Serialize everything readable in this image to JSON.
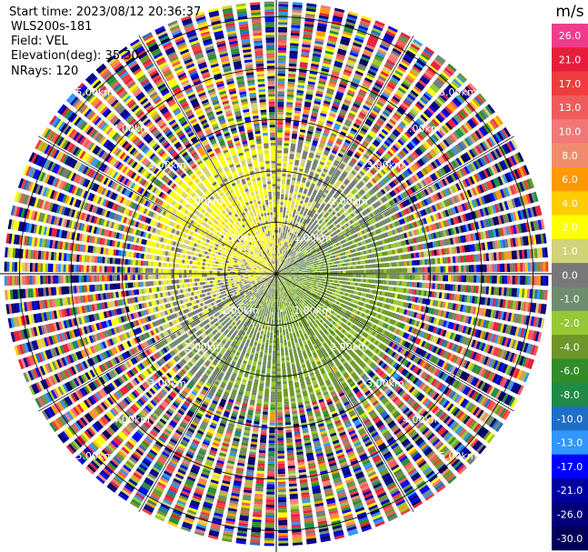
{
  "info": {
    "start_time": "Start time: 2023/08/12 20:36:37",
    "station": "WLS200s-181",
    "field": "Field: VEL",
    "elevation": "Elevation(deg): 35.30",
    "nrays": "NRays: 120"
  },
  "colorbar": {
    "unit": "m/s",
    "ticks": [
      "26.0",
      "21.0",
      "17.0",
      "13.0",
      "10.0",
      "8.0",
      "6.0",
      "4.0",
      "2.0",
      "1.0",
      "0.0",
      "-1.0",
      "-2.0",
      "-4.0",
      "-6.0",
      "-8.0",
      "-10.0",
      "-13.0",
      "-17.0",
      "-21.0",
      "-26.0",
      "-30.0"
    ],
    "colors": [
      "#f03c8c",
      "#e61e3c",
      "#f03c3c",
      "#f05a5a",
      "#f07878",
      "#f08c6e",
      "#ff9900",
      "#ffcc00",
      "#ffff00",
      "#d2d278",
      "#787878",
      "#6e8c6e",
      "#96c832",
      "#6e9628",
      "#328c28",
      "#1e8c46",
      "#1e6ec8",
      "#3296ff",
      "#0000ff",
      "#0000a0",
      "#000078",
      "#00005a"
    ]
  },
  "chart_data": {
    "type": "heatmap",
    "projection": "polar-ppi",
    "field": "VEL",
    "unit": "m/s",
    "value_range": [
      -30,
      26
    ],
    "nrays": 120,
    "range_rings_km": [
      1.0,
      2.0,
      3.0,
      4.0,
      5.0
    ],
    "ring_labels": [
      "1.00km",
      "2.00km",
      "3.00km",
      "4.00km",
      "5.00km"
    ],
    "ray_spacing_deg": 30,
    "max_range_km": 5.35,
    "description_of_pattern": {
      "inner_range_km": [
        0,
        2.6
      ],
      "inner_dominant_values": [
        -4,
        -2,
        0,
        2
      ],
      "outer_range_km": [
        2.6,
        5.35
      ],
      "outer": "noisy full-scale values"
    }
  }
}
